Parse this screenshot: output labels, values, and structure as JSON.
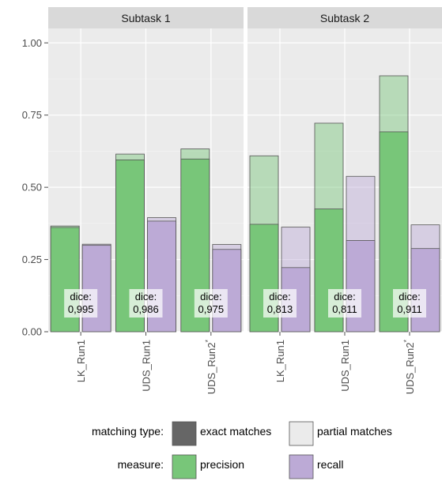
{
  "chart_data": {
    "type": "bar",
    "facets": [
      {
        "title": "Subtask 1",
        "categories": [
          "LK_Run1",
          "UDS_Run1",
          "UDS_Run2*"
        ],
        "series": [
          {
            "name": "precision",
            "exact": [
              0.361,
              0.595,
              0.598
            ],
            "partial": [
              0.366,
              0.615,
              0.633
            ]
          },
          {
            "name": "recall",
            "exact": [
              0.299,
              0.383,
              0.285
            ],
            "partial": [
              0.303,
              0.395,
              0.302
            ]
          }
        ],
        "dice_labels": [
          "dice:\n0,995",
          "dice:\n0,986",
          "dice:\n0,975"
        ]
      },
      {
        "title": "Subtask 2",
        "categories": [
          "LK_Run1",
          "UDS_Run1",
          "UDS_Run2*"
        ],
        "series": [
          {
            "name": "precision",
            "exact": [
              0.372,
              0.425,
              0.692
            ],
            "partial": [
              0.609,
              0.722,
              0.886
            ]
          },
          {
            "name": "recall",
            "exact": [
              0.222,
              0.316,
              0.288
            ],
            "partial": [
              0.362,
              0.538,
              0.37
            ]
          }
        ],
        "dice_labels": [
          "dice:\n0,813",
          "dice:\n0,811",
          "dice:\n0,911"
        ]
      }
    ],
    "ylim": [
      0,
      1.05
    ],
    "yticks": [
      0,
      0.25,
      0.5,
      0.75,
      1.0
    ],
    "ytick_labels": [
      "0.00",
      "0.25",
      "0.50",
      "0.75",
      "1.00"
    ],
    "xlabel": "",
    "ylabel": "",
    "grid": true,
    "legend": {
      "placement": "bottom",
      "matching_type": {
        "title": "matching type:",
        "items": [
          "exact matches",
          "partial matches"
        ]
      },
      "measure": {
        "title": "measure:",
        "items": [
          "precision",
          "recall"
        ]
      }
    },
    "colors": {
      "precision": "#78c679",
      "recall": "#bcaad6",
      "panel_bg": "#ebebeb",
      "strip_bg": "#d9d9d9",
      "grid": "#ffffff",
      "bar_outline": "#555555",
      "exact_swatch": "#666666",
      "partial_swatch": "#ebebeb"
    }
  }
}
